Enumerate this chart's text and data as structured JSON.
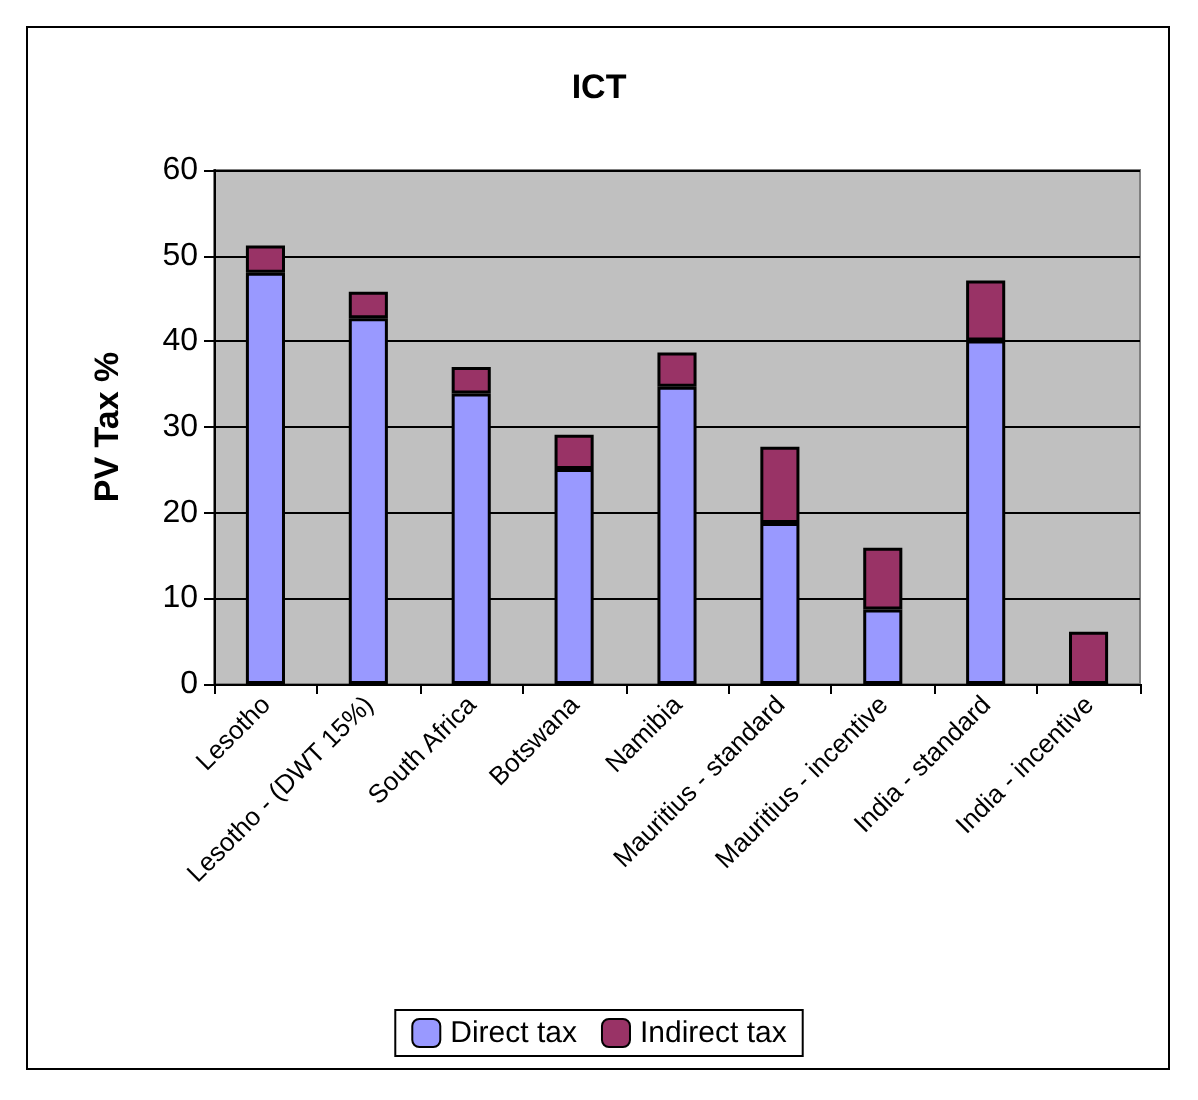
{
  "chart_data": {
    "type": "bar",
    "title": "ICT",
    "ylabel": "PV Tax %",
    "categories": [
      "Lesotho",
      "Lesotho - (DWT 15%)",
      "South Africa",
      "Botswana",
      "Namibia",
      "Mauritius - standard",
      "Mauritius - incentive",
      "India - standard",
      "India - incentive"
    ],
    "series": [
      {
        "name": "Direct tax",
        "color": "#9999ff",
        "values": [
          48,
          42.7,
          33.9,
          25.1,
          34.7,
          18.8,
          8.7,
          40.1,
          0
        ]
      },
      {
        "name": "Indirect tax",
        "color": "#993366",
        "values": [
          3.2,
          3.1,
          3.1,
          4,
          4,
          8.9,
          7.2,
          7,
          6.1
        ]
      }
    ],
    "stacked": true,
    "ylim": [
      0,
      60
    ],
    "yticks": [
      0,
      10,
      20,
      30,
      40,
      50,
      60
    ],
    "grid": "y",
    "legend": "bottom"
  }
}
